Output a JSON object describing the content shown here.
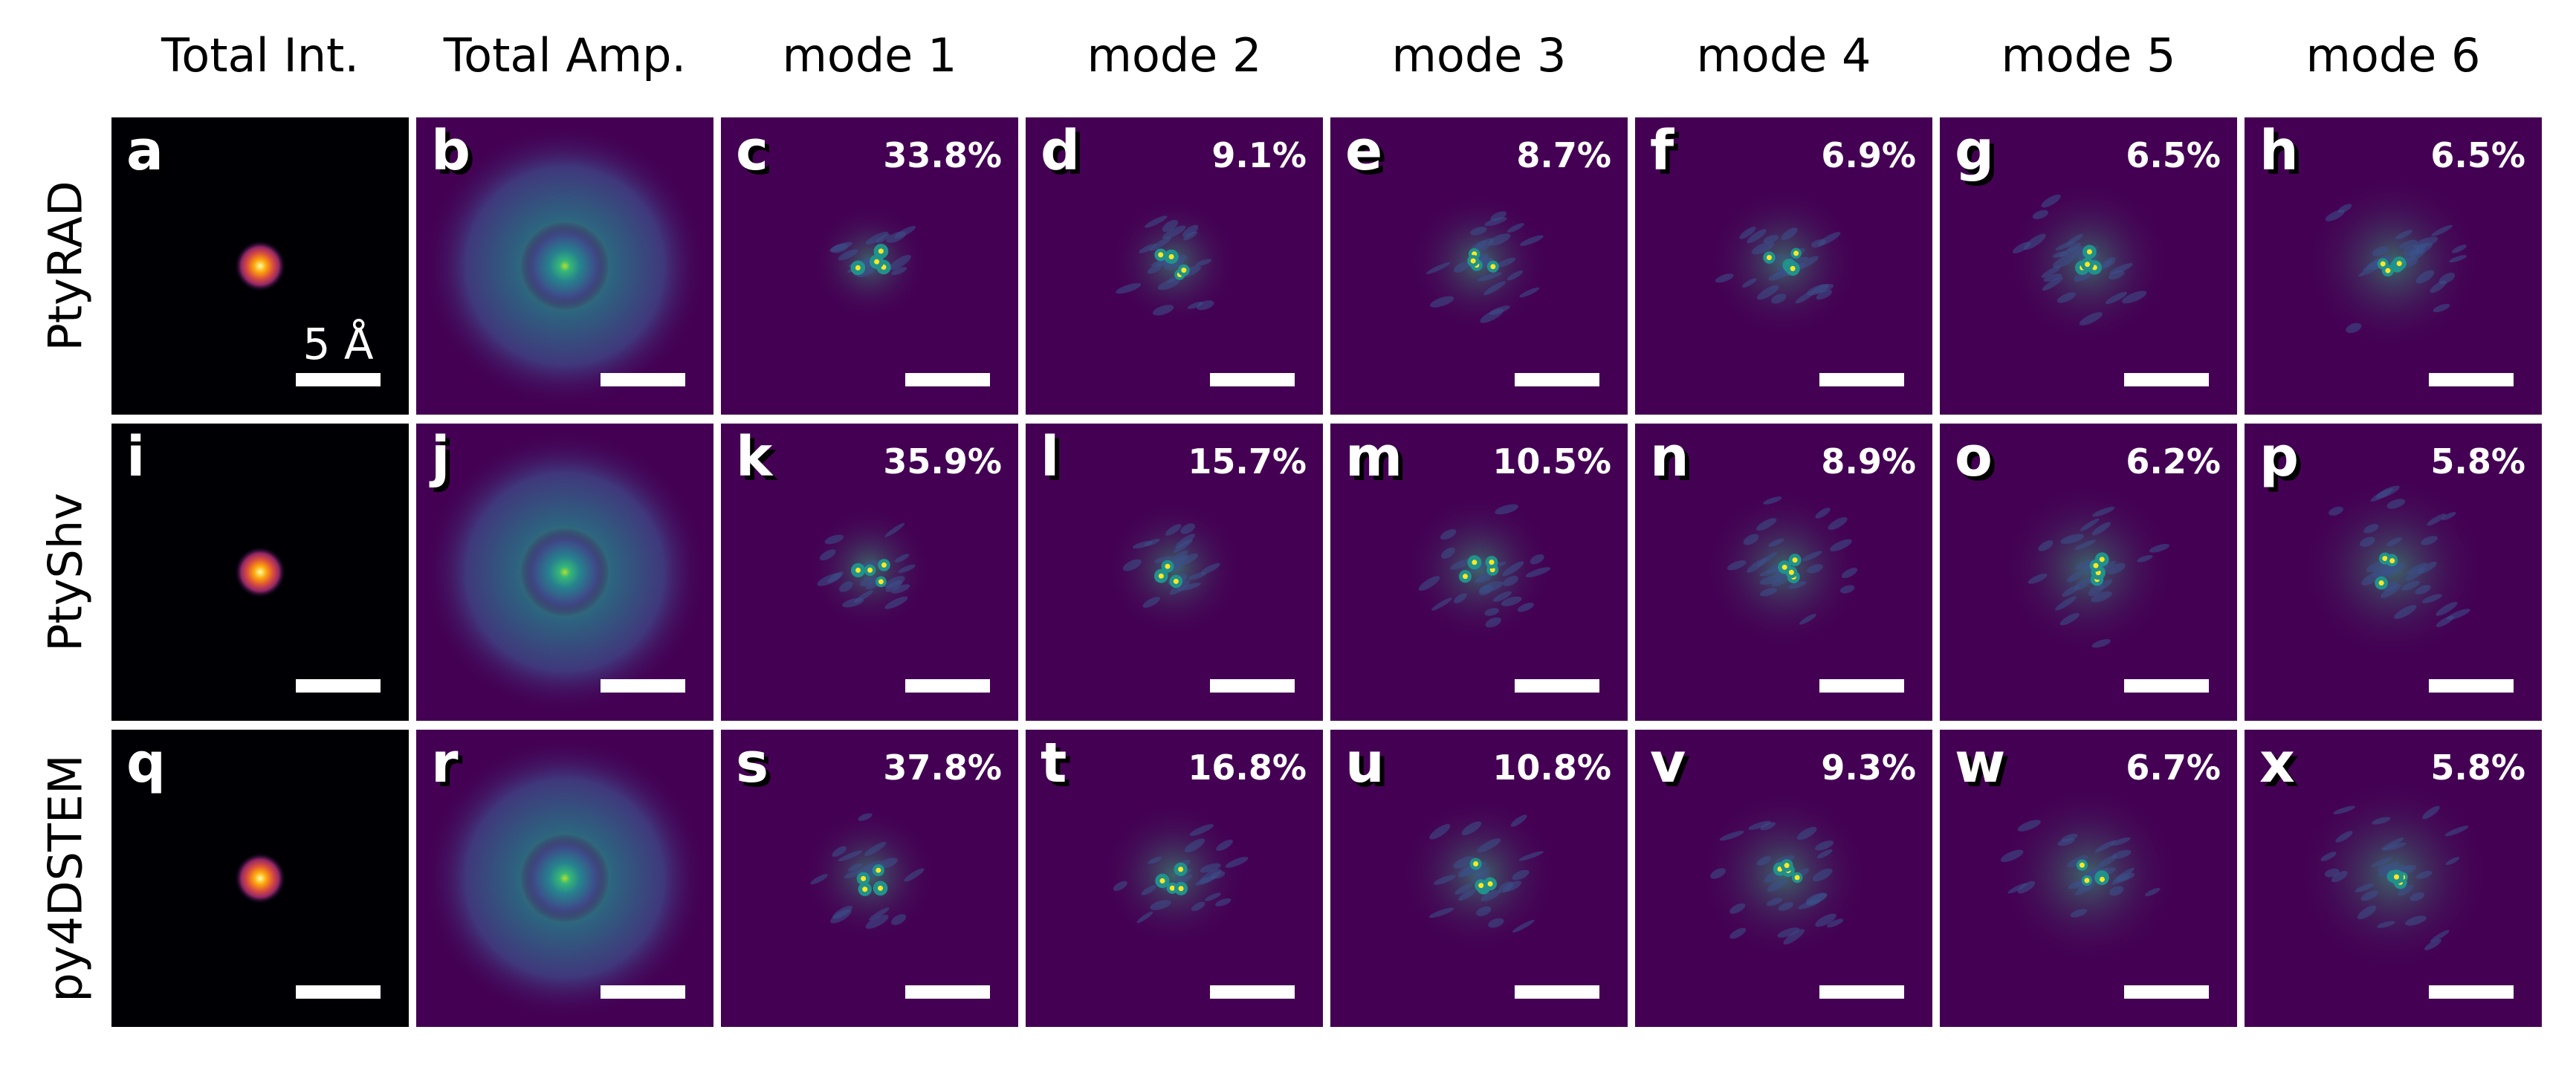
{
  "columns": [
    "Total Int.",
    "Total Amp.",
    "mode 1",
    "mode 2",
    "mode 3",
    "mode 4",
    "mode 5",
    "mode 6"
  ],
  "rows": [
    {
      "label": "PtyRAD",
      "panels": [
        {
          "letter": "a",
          "percent": "",
          "type": "intensity",
          "scale_label": "5 Å"
        },
        {
          "letter": "b",
          "percent": "",
          "type": "amplitude"
        },
        {
          "letter": "c",
          "percent": "33.8%",
          "type": "mode"
        },
        {
          "letter": "d",
          "percent": "9.1%",
          "type": "mode"
        },
        {
          "letter": "e",
          "percent": "8.7%",
          "type": "mode"
        },
        {
          "letter": "f",
          "percent": "6.9%",
          "type": "mode"
        },
        {
          "letter": "g",
          "percent": "6.5%",
          "type": "mode"
        },
        {
          "letter": "h",
          "percent": "6.5%",
          "type": "mode"
        }
      ]
    },
    {
      "label": "PtyShv",
      "panels": [
        {
          "letter": "i",
          "percent": "",
          "type": "intensity"
        },
        {
          "letter": "j",
          "percent": "",
          "type": "amplitude"
        },
        {
          "letter": "k",
          "percent": "35.9%",
          "type": "mode"
        },
        {
          "letter": "l",
          "percent": "15.7%",
          "type": "mode"
        },
        {
          "letter": "m",
          "percent": "10.5%",
          "type": "mode"
        },
        {
          "letter": "n",
          "percent": "8.9%",
          "type": "mode"
        },
        {
          "letter": "o",
          "percent": "6.2%",
          "type": "mode"
        },
        {
          "letter": "p",
          "percent": "5.8%",
          "type": "mode"
        }
      ]
    },
    {
      "label": "py4DSTEM",
      "panels": [
        {
          "letter": "q",
          "percent": "",
          "type": "intensity"
        },
        {
          "letter": "r",
          "percent": "",
          "type": "amplitude"
        },
        {
          "letter": "s",
          "percent": "37.8%",
          "type": "mode"
        },
        {
          "letter": "t",
          "percent": "16.8%",
          "type": "mode"
        },
        {
          "letter": "u",
          "percent": "10.8%",
          "type": "mode"
        },
        {
          "letter": "v",
          "percent": "9.3%",
          "type": "mode"
        },
        {
          "letter": "w",
          "percent": "6.7%",
          "type": "mode"
        },
        {
          "letter": "x",
          "percent": "5.8%",
          "type": "mode"
        }
      ]
    }
  ],
  "colors": {
    "intensity_bg": "#000004",
    "mode_bg": "#440154",
    "bright": "#fde725",
    "mid": "#21918c"
  }
}
